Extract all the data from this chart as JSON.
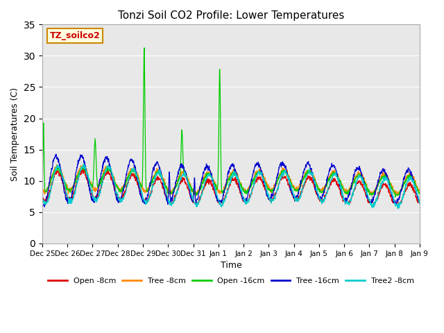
{
  "title": "Tonzi Soil CO2 Profile: Lower Temperatures",
  "xlabel": "Time",
  "ylabel": "Soil Temperatures (C)",
  "ylim": [
    0,
    35
  ],
  "yticks": [
    0,
    5,
    10,
    15,
    20,
    25,
    30,
    35
  ],
  "legend_label": "TZ_soilco2",
  "series_labels": [
    "Open -8cm",
    "Tree -8cm",
    "Open -16cm",
    "Tree -16cm",
    "Tree2 -8cm"
  ],
  "series_colors": [
    "#dd0000",
    "#ff8800",
    "#00cc00",
    "#0000cc",
    "#00cccc"
  ],
  "plot_bg_color": "#e8e8e8",
  "x_tick_labels": [
    "Dec 25",
    "Dec 26",
    "Dec 27",
    "Dec 28",
    "Dec 29",
    "Dec 30",
    "Dec 31",
    "Jan 1",
    "Jan 2",
    "Jan 3",
    "Jan 4",
    "Jan 5",
    "Jan 6",
    "Jan 7",
    "Jan 8",
    "Jan 9"
  ],
  "figsize": [
    6.4,
    4.8
  ],
  "dpi": 100
}
